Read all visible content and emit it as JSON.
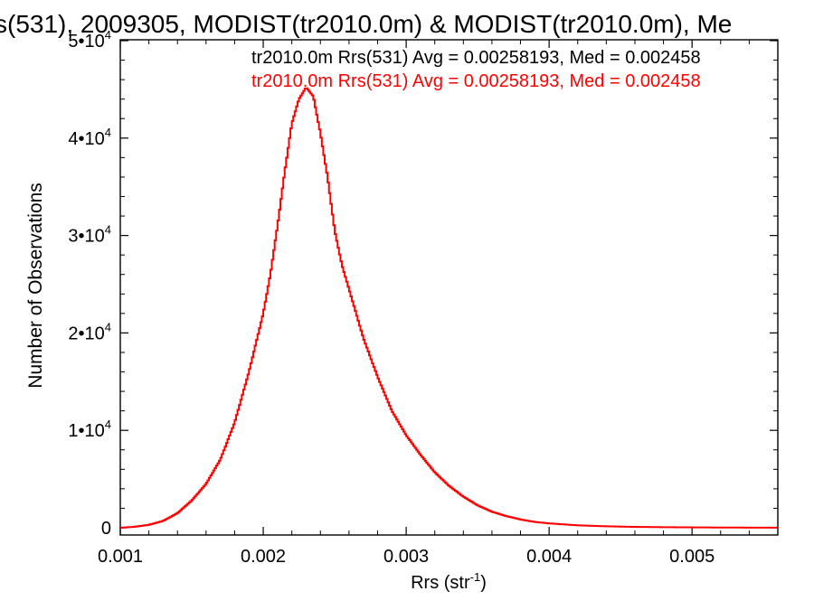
{
  "chart_data": {
    "type": "line",
    "title": "s(531), 2009305, MODIST(tr2010.0m) & MODIST(tr2010.0m), Me",
    "xlabel": "Rrs (str",
    "xlabel_sup": "-1",
    "xlabel_close": ")",
    "ylabel": "Number of Observations",
    "xlim": [
      0.001,
      0.0056
    ],
    "ylim": [
      0,
      50000
    ],
    "x_ticks": [
      0.001,
      0.002,
      0.003,
      0.004,
      0.005
    ],
    "x_tick_labels": [
      "0.001",
      "0.002",
      "0.003",
      "0.004",
      "0.005"
    ],
    "y_ticks": [
      0,
      10000,
      20000,
      30000,
      40000,
      50000
    ],
    "y_tick_labels": [
      {
        "base": "0",
        "exp": ""
      },
      {
        "base": "1•10",
        "exp": "4"
      },
      {
        "base": "2•10",
        "exp": "4"
      },
      {
        "base": "3•10",
        "exp": "4"
      },
      {
        "base": "4•10",
        "exp": "4"
      },
      {
        "base": "5•10",
        "exp": "4"
      }
    ],
    "grid": false,
    "legend_position": "top-right",
    "annotations": [
      {
        "text": "tr2010.0m Rrs(531) Avg = 0.00258193, Med = 0.002458",
        "color": "#000000"
      },
      {
        "text": "tr2010.0m Rrs(531) Avg = 0.00258193, Med = 0.002458",
        "color": "#ff0000"
      }
    ],
    "series": [
      {
        "color": "#ff0000",
        "style": "step",
        "x": [
          0.001,
          0.0011,
          0.0012,
          0.0013,
          0.0014,
          0.0015,
          0.0016,
          0.0017,
          0.0018,
          0.0019,
          0.002,
          0.00205,
          0.0021,
          0.00215,
          0.0022,
          0.00225,
          0.0023,
          0.00235,
          0.0024,
          0.00245,
          0.0025,
          0.00255,
          0.0026,
          0.00265,
          0.0027,
          0.00275,
          0.0028,
          0.0029,
          0.003,
          0.0031,
          0.0032,
          0.0033,
          0.0034,
          0.0035,
          0.0036,
          0.0037,
          0.0038,
          0.0039,
          0.004,
          0.0042,
          0.0044,
          0.0046,
          0.0048,
          0.005,
          0.0052,
          0.0054,
          0.0056
        ],
        "y": [
          0,
          100,
          300,
          700,
          1500,
          2800,
          4500,
          7000,
          10800,
          16000,
          22000,
          26000,
          31000,
          36500,
          41500,
          44000,
          45200,
          44300,
          40500,
          36000,
          30500,
          27000,
          24500,
          22000,
          19500,
          17500,
          15500,
          12000,
          9500,
          7500,
          5700,
          4300,
          3200,
          2300,
          1650,
          1200,
          850,
          600,
          450,
          250,
          150,
          90,
          60,
          40,
          25,
          15,
          10
        ]
      }
    ]
  }
}
